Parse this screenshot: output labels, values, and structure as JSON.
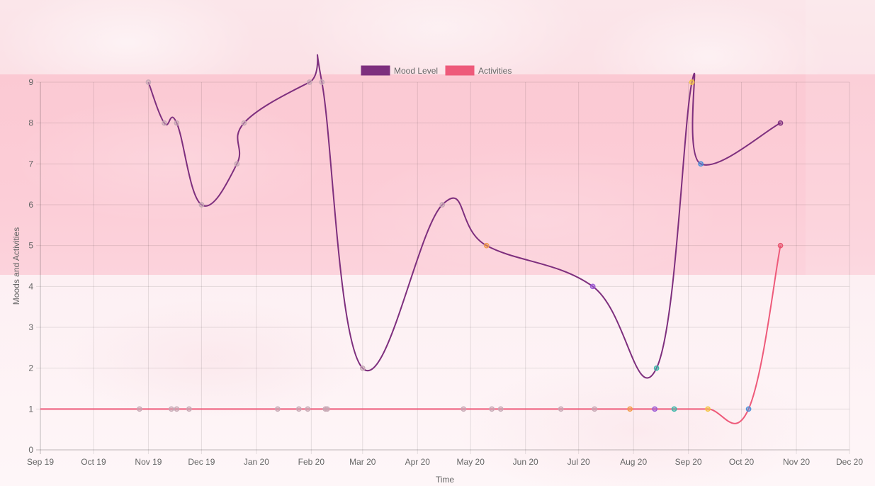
{
  "chart_data": {
    "type": "line",
    "xlabel": "Time",
    "ylabel": "Moods and Activities",
    "ylim": [
      0,
      9
    ],
    "yticks": [
      "0",
      "1",
      "2",
      "3",
      "4",
      "5",
      "6",
      "7",
      "8",
      "9"
    ],
    "xtick_labels": [
      "Sep 19",
      "Oct 19",
      "Nov 19",
      "Dec 19",
      "Jan 20",
      "Feb 20",
      "Mar 20",
      "Apr 20",
      "May 20",
      "Jun 20",
      "Jul 20",
      "Aug 20",
      "Sep 20",
      "Oct 20",
      "Nov 20",
      "Dec 20"
    ],
    "xtick_dates": [
      "2019-09-01",
      "2019-10-01",
      "2019-11-01",
      "2019-12-01",
      "2020-01-01",
      "2020-02-01",
      "2020-03-01",
      "2020-04-01",
      "2020-05-01",
      "2020-06-01",
      "2020-07-01",
      "2020-08-01",
      "2020-09-01",
      "2020-10-01",
      "2020-11-01",
      "2020-12-01"
    ],
    "xlim": [
      "2019-09-01",
      "2020-12-01"
    ],
    "grid": true,
    "legend_position": "top",
    "series": [
      {
        "name": "Mood Level",
        "color": "#7e2f7e",
        "points": [
          {
            "x": "2019-11-01",
            "y": 9,
            "c": "#c7a9b5"
          },
          {
            "x": "2019-11-10",
            "y": 8,
            "c": "#c7a9b5"
          },
          {
            "x": "2019-11-17",
            "y": 8,
            "c": "#c7a9b5"
          },
          {
            "x": "2019-12-01",
            "y": 6,
            "c": "#c7a9b5"
          },
          {
            "x": "2019-12-21",
            "y": 7,
            "c": "#c7a9b5"
          },
          {
            "x": "2019-12-25",
            "y": 8,
            "c": "#c7a9b5"
          },
          {
            "x": "2020-01-31",
            "y": 9,
            "c": "#c7a9b5"
          },
          {
            "x": "2020-02-07",
            "y": 9,
            "c": "#c7a9b5"
          },
          {
            "x": "2020-03-01",
            "y": 2,
            "c": "#c7a9b5"
          },
          {
            "x": "2020-04-15",
            "y": 6,
            "c": "#c7a9b5"
          },
          {
            "x": "2020-05-10",
            "y": 5,
            "c": "#f39c4a"
          },
          {
            "x": "2020-07-09",
            "y": 4,
            "c": "#9b59d6"
          },
          {
            "x": "2020-08-14",
            "y": 2,
            "c": "#3ab7a8"
          },
          {
            "x": "2020-09-03",
            "y": 9,
            "c": "#f4c542"
          },
          {
            "x": "2020-09-08",
            "y": 7,
            "c": "#4a90d9"
          },
          {
            "x": "2020-10-23",
            "y": 8,
            "c": "#7e2f7e"
          }
        ]
      },
      {
        "name": "Activities",
        "color": "#ee5a7a",
        "points": [
          {
            "x": "2019-09-01",
            "y": 1,
            "c": "none"
          },
          {
            "x": "2019-10-27",
            "y": 1,
            "c": "#c7a9b5"
          },
          {
            "x": "2019-11-14",
            "y": 1,
            "c": "#c7a9b5"
          },
          {
            "x": "2019-11-17",
            "y": 1,
            "c": "#c7a9b5"
          },
          {
            "x": "2019-11-24",
            "y": 1,
            "c": "#c7a9b5"
          },
          {
            "x": "2020-01-13",
            "y": 1,
            "c": "#c7a9b5"
          },
          {
            "x": "2020-01-25",
            "y": 1,
            "c": "#c7a9b5"
          },
          {
            "x": "2020-01-30",
            "y": 1,
            "c": "#c7a9b5"
          },
          {
            "x": "2020-02-09",
            "y": 1,
            "c": "#c7a9b5"
          },
          {
            "x": "2020-02-10",
            "y": 1,
            "c": "#c7a9b5"
          },
          {
            "x": "2020-04-27",
            "y": 1,
            "c": "#c7a9b5"
          },
          {
            "x": "2020-05-13",
            "y": 1,
            "c": "#c7a9b5"
          },
          {
            "x": "2020-05-18",
            "y": 1,
            "c": "#c7a9b5"
          },
          {
            "x": "2020-06-21",
            "y": 1,
            "c": "#c7a9b5"
          },
          {
            "x": "2020-07-10",
            "y": 1,
            "c": "#c7a9b5"
          },
          {
            "x": "2020-07-30",
            "y": 1,
            "c": "#f39c4a"
          },
          {
            "x": "2020-08-13",
            "y": 1,
            "c": "#9b59d6"
          },
          {
            "x": "2020-08-24",
            "y": 1,
            "c": "#3ab7a8"
          },
          {
            "x": "2020-09-12",
            "y": 1,
            "c": "#f4c542"
          },
          {
            "x": "2020-10-05",
            "y": 1,
            "c": "#4a90d9"
          },
          {
            "x": "2020-10-23",
            "y": 5,
            "c": "#e8536e"
          }
        ]
      }
    ]
  }
}
